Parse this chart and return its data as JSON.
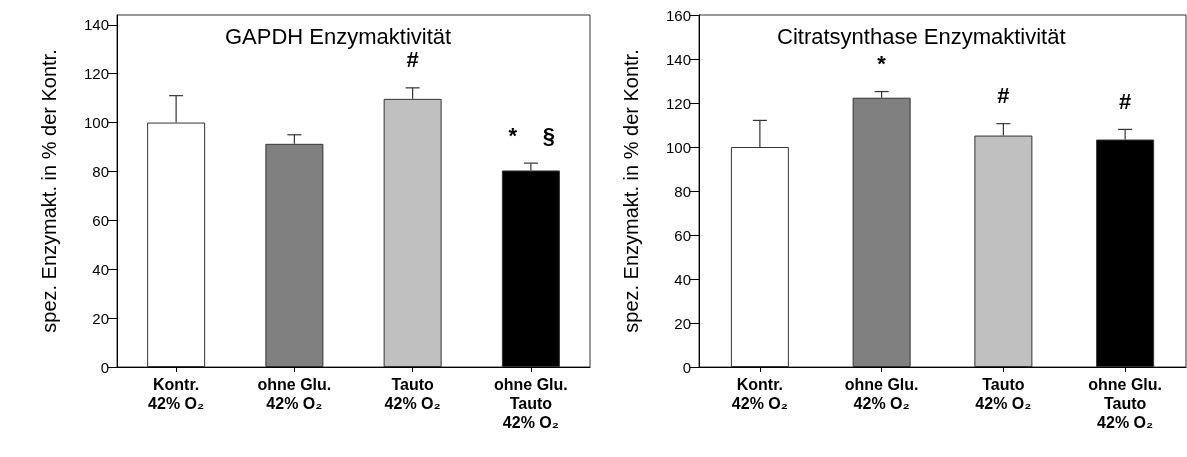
{
  "chart_data": [
    {
      "type": "bar",
      "title": "GAPDH Enzymaktivität",
      "ylabel": "spez. Enzymakt. in % der Kontr.",
      "categories": [
        "Kontr.\n42% O₂",
        "ohne Glu.\n42% O₂",
        "Tauto\n42% O₂",
        "ohne Glu.\nTauto\n42% O₂"
      ],
      "values": [
        100,
        91.3,
        109.7,
        80.4
      ],
      "colors": [
        "#ffffff",
        "#808080",
        "#c0c0c0",
        "#000000"
      ],
      "errors": [
        [
          100,
          111
        ],
        [
          91.3,
          95
        ],
        [
          109.7,
          114.2
        ],
        [
          80.4,
          83.4
        ]
      ],
      "ylim": [
        0,
        144
      ],
      "yticks": [
        0,
        20,
        40,
        60,
        80,
        100,
        120,
        140
      ],
      "grid": false,
      "annotations": [
        {
          "text": "#",
          "x": "Tauto\n42% O₂",
          "y": 109.7
        },
        {
          "text": "*",
          "x": "ohne Glu.\nTauto\n42% O₂",
          "y": 80.4
        },
        {
          "text": "§",
          "x": "ohne Glu.\nTauto\n42% O₂",
          "y": 80.4
        }
      ]
    },
    {
      "type": "bar",
      "title": "Citratsynthase Enzymaktivität",
      "ylabel": "spez. Enzymakt. in % der Kontr.",
      "categories": [
        "Kontr.\n42% O₂",
        "ohne Glu.\n42% O₂",
        "Tauto\n42% O₂",
        "ohne Glu.\nTauto\n42% O₂"
      ],
      "values": [
        100,
        122.4,
        105.2,
        103.4
      ],
      "colors": [
        "#ffffff",
        "#808080",
        "#c0c0c0",
        "#000000"
      ],
      "errors": [
        [
          100,
          112.1
        ],
        [
          122.4,
          125.2
        ],
        [
          105.2,
          110.6
        ],
        [
          103.4,
          108
        ]
      ],
      "ylim": [
        0,
        160
      ],
      "yticks": [
        0,
        20,
        40,
        60,
        80,
        100,
        120,
        140,
        160
      ],
      "grid": false,
      "annotations": [
        {
          "text": "*",
          "x": "ohne Glu.\n42% O₂",
          "y": 122.4
        },
        {
          "text": "#",
          "x": "Tauto\n42% O₂",
          "y": 105.2
        },
        {
          "text": "#",
          "x": "ohne Glu.\nTauto\n42% O₂",
          "y": 103.4
        }
      ]
    }
  ]
}
